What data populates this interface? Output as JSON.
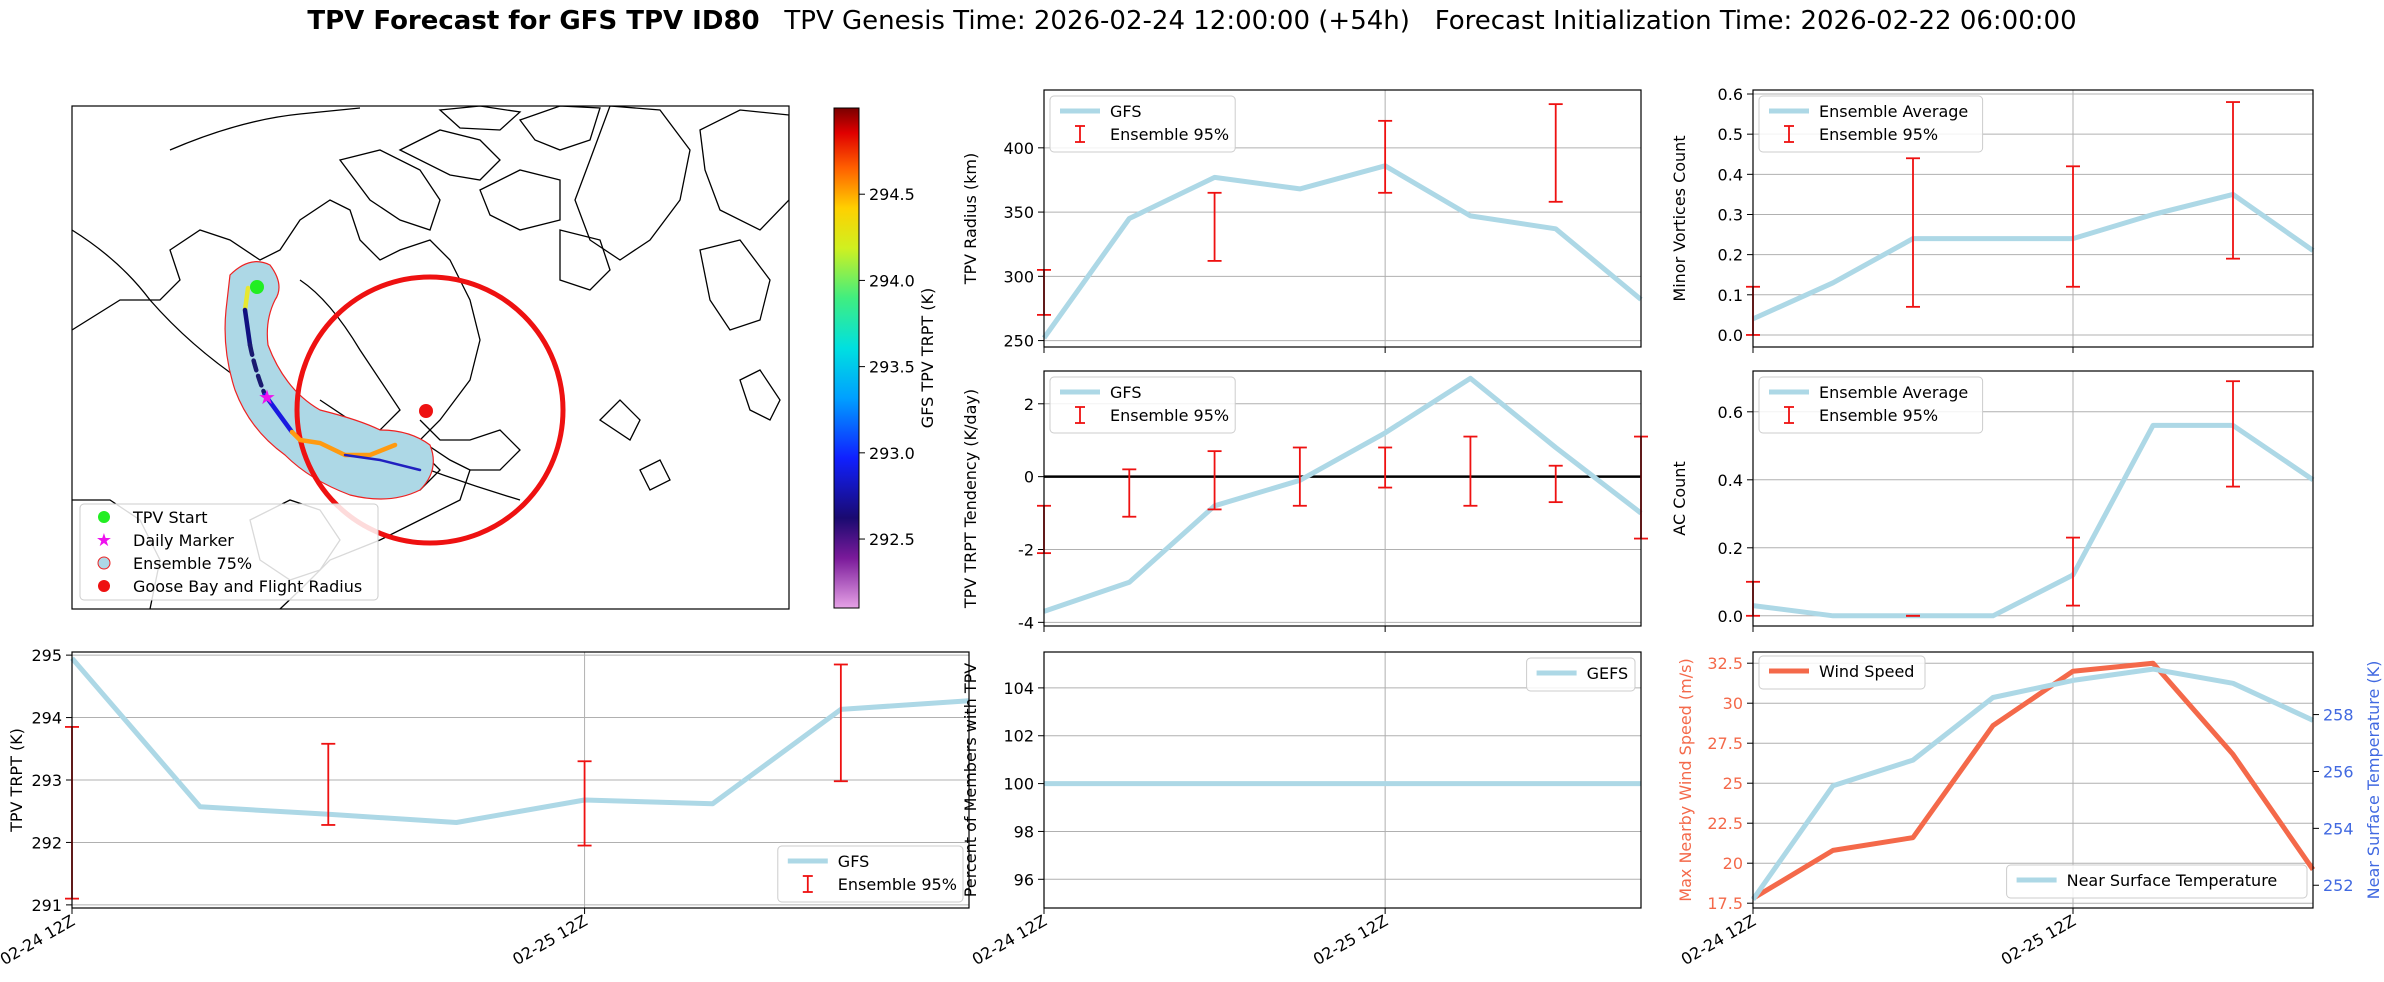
{
  "title": {
    "bold": "TPV Forecast for GFS TPV ID80",
    "genesis": "TPV Genesis Time: 2026-02-24 12:00:00 (+54h)",
    "init": "Forecast Initialization Time: 2026-02-22 06:00:00"
  },
  "map": {
    "legend": [
      {
        "label": "TPV Start",
        "marker": "circle",
        "color": "#22ee22"
      },
      {
        "label": "Daily Marker",
        "marker": "star",
        "color": "#ee11ee"
      },
      {
        "label": "Ensemble 75%",
        "marker": "circle-outline",
        "color": "#add8e6"
      },
      {
        "label": "Goose Bay and Flight Radius",
        "marker": "circle",
        "color": "#ee1111"
      }
    ],
    "colorbar": {
      "label": "GFS TPV TRPT (K)",
      "range": [
        292.1,
        295.0
      ],
      "ticks": [
        292.5,
        293.0,
        293.5,
        294.0,
        294.5
      ]
    }
  },
  "x_ticks": [
    "02-24 12Z",
    "02-25 12Z"
  ],
  "colors": {
    "gfs": "#add8e6",
    "ens": "#ee1111",
    "wind": "#f4694a",
    "temp_axis": "#4169e1",
    "zero": "#000000"
  },
  "chart_data": [
    {
      "id": "radius",
      "type": "line",
      "title": "",
      "ylabel": "TPV Radius (km)",
      "ylim": [
        245,
        445
      ],
      "yticks": [
        250,
        300,
        350,
        400
      ],
      "x": [
        0,
        1,
        2,
        3,
        4,
        5,
        6,
        7
      ],
      "series": [
        {
          "name": "GFS",
          "values": [
            252,
            345,
            377,
            368,
            386,
            347,
            337,
            282
          ]
        }
      ],
      "errorbars": {
        "name": "Ensemble 95%",
        "x": [
          0,
          2,
          4,
          6
        ],
        "lower": [
          270,
          312,
          365,
          358
        ],
        "upper": [
          305,
          365,
          421,
          434
        ]
      },
      "legend": "top-left"
    },
    {
      "id": "minor",
      "type": "line",
      "title": "",
      "ylabel": "Minor Vortices Count",
      "ylim": [
        -0.03,
        0.61
      ],
      "yticks": [
        0.0,
        0.1,
        0.2,
        0.3,
        0.4,
        0.5,
        0.6
      ],
      "x": [
        0,
        1,
        2,
        3,
        4,
        5,
        6,
        7
      ],
      "series": [
        {
          "name": "Ensemble Average",
          "values": [
            0.04,
            0.13,
            0.24,
            0.24,
            0.24,
            0.3,
            0.35,
            0.21
          ]
        }
      ],
      "errorbars": {
        "name": "Ensemble 95%",
        "x": [
          0,
          2,
          4,
          6
        ],
        "lower": [
          0.0,
          0.07,
          0.12,
          0.19
        ],
        "upper": [
          0.12,
          0.44,
          0.42,
          0.58
        ]
      },
      "legend": "top-left"
    },
    {
      "id": "tendency",
      "type": "line",
      "title": "",
      "ylabel": "TPV TRPT Tendency (K/day)",
      "ylim": [
        -4.1,
        2.9
      ],
      "yticks": [
        -4,
        -2,
        0,
        2
      ],
      "x": [
        0,
        1,
        2,
        3,
        4,
        5,
        6,
        7
      ],
      "series": [
        {
          "name": "GFS",
          "values": [
            -3.7,
            -2.9,
            -0.8,
            -0.1,
            1.2,
            2.7,
            0.8,
            -1.0
          ]
        }
      ],
      "errorbars": {
        "name": "Ensemble 95%",
        "x": [
          0,
          1,
          2,
          3,
          4,
          5,
          6,
          7
        ],
        "lower": [
          -2.1,
          -1.1,
          -0.9,
          -0.8,
          -0.3,
          -0.8,
          -0.7,
          -1.7
        ],
        "upper": [
          -0.8,
          0.2,
          0.7,
          0.8,
          0.8,
          1.1,
          0.3,
          1.1
        ]
      },
      "zero_line": true,
      "legend": "top-left"
    },
    {
      "id": "ac",
      "type": "line",
      "title": "",
      "ylabel": "AC Count",
      "ylim": [
        -0.03,
        0.72
      ],
      "yticks": [
        0.0,
        0.2,
        0.4,
        0.6
      ],
      "x": [
        0,
        1,
        2,
        3,
        4,
        5,
        6,
        7
      ],
      "series": [
        {
          "name": "Ensemble Average",
          "values": [
            0.03,
            0.0,
            0.0,
            0.0,
            0.12,
            0.56,
            0.56,
            0.4
          ]
        }
      ],
      "errorbars": {
        "name": "Ensemble 95%",
        "x": [
          0,
          2,
          4,
          6
        ],
        "lower": [
          0.0,
          0.0,
          0.03,
          0.38
        ],
        "upper": [
          0.1,
          0.0,
          0.23,
          0.69
        ]
      },
      "legend": "top-left"
    },
    {
      "id": "trpt",
      "type": "line",
      "title": "",
      "ylabel": "TPV TRPT (K)",
      "ylim": [
        290.95,
        295.05
      ],
      "yticks": [
        291,
        292,
        293,
        294,
        295
      ],
      "x": [
        0,
        1,
        2,
        3,
        4,
        5,
        6,
        7
      ],
      "series": [
        {
          "name": "GFS",
          "values": [
            294.95,
            292.57,
            292.45,
            292.32,
            292.68,
            292.62,
            294.13,
            294.27
          ]
        }
      ],
      "errorbars": {
        "name": "Ensemble 95%",
        "x": [
          0,
          2,
          4,
          6
        ],
        "lower": [
          291.1,
          292.28,
          291.95,
          292.98
        ],
        "upper": [
          293.85,
          293.58,
          293.3,
          294.85
        ]
      },
      "legend": "bottom-right"
    },
    {
      "id": "members",
      "type": "line",
      "title": "",
      "ylabel": "Percent of Members with TPV",
      "ylim": [
        94.8,
        105.5
      ],
      "yticks": [
        96,
        98,
        100,
        102,
        104
      ],
      "x": [
        0,
        1,
        2,
        3,
        4,
        5,
        6,
        7
      ],
      "series": [
        {
          "name": "GEFS",
          "values": [
            100,
            100,
            100,
            100,
            100,
            100,
            100,
            100
          ]
        }
      ],
      "legend": "top-right"
    },
    {
      "id": "wind",
      "type": "line",
      "title": "",
      "ylabel": "Max Nearby Wind Speed (m/s)",
      "y2label": "Near Surface Temperature (K)",
      "ylim": [
        17.2,
        33.2
      ],
      "yticks": [
        17.5,
        20.0,
        22.5,
        25.0,
        27.5,
        30.0,
        32.5
      ],
      "y2lim": [
        251.2,
        260.2
      ],
      "y2ticks": [
        252,
        254,
        256,
        258
      ],
      "x": [
        0,
        1,
        2,
        3,
        4,
        5,
        6,
        7
      ],
      "series": [
        {
          "name": "Wind Speed",
          "axis": "left",
          "values": [
            17.8,
            20.8,
            21.6,
            28.6,
            32.0,
            32.5,
            26.8,
            19.6
          ]
        },
        {
          "name": "Near Surface Temperature",
          "axis": "right",
          "values": [
            251.5,
            255.5,
            256.4,
            258.6,
            259.2,
            259.6,
            259.1,
            257.8
          ]
        }
      ],
      "legend": "top-left / bottom-right"
    }
  ]
}
